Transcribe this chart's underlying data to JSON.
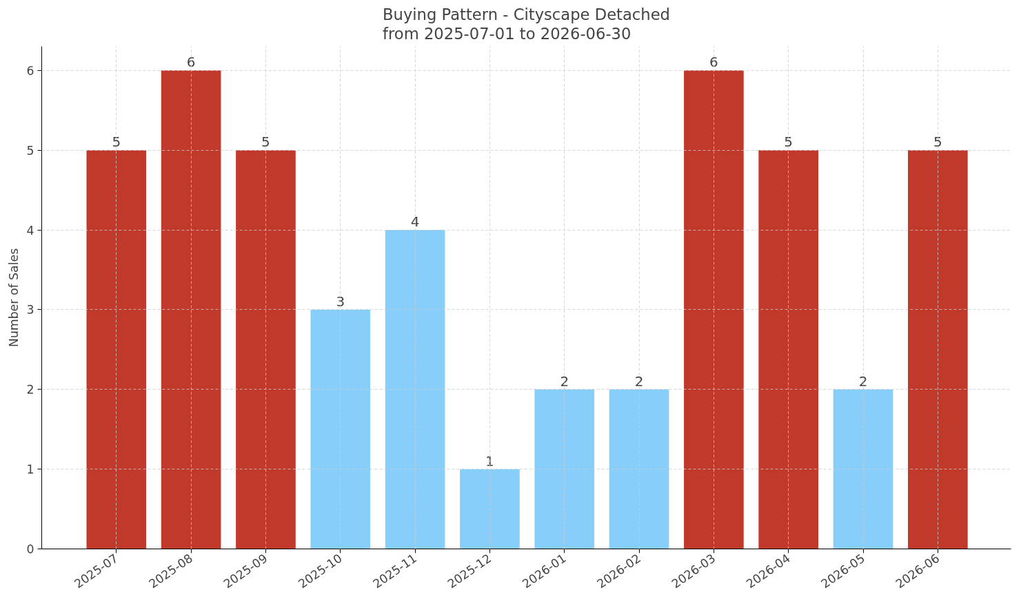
{
  "chart_data": {
    "type": "bar",
    "title": "Buying Pattern - Cityscape Detached\nfrom 2025-07-01 to 2026-06-30",
    "ylabel": "Number of Sales",
    "categories": [
      "2025-07",
      "2025-08",
      "2025-09",
      "2025-10",
      "2025-11",
      "2025-12",
      "2026-01",
      "2026-02",
      "2026-03",
      "2026-04",
      "2026-05",
      "2026-06"
    ],
    "values": [
      5,
      6,
      5,
      3,
      4,
      1,
      2,
      2,
      6,
      5,
      2,
      5
    ],
    "colors": [
      "#c0392b",
      "#c0392b",
      "#c0392b",
      "#87cefa",
      "#87cefa",
      "#87cefa",
      "#87cefa",
      "#87cefa",
      "#c0392b",
      "#c0392b",
      "#87cefa",
      "#c0392b"
    ],
    "ylim": [
      0,
      6.3
    ],
    "yticks": [
      0,
      1,
      2,
      3,
      4,
      5,
      6
    ],
    "grid": true,
    "data_labels": true
  }
}
